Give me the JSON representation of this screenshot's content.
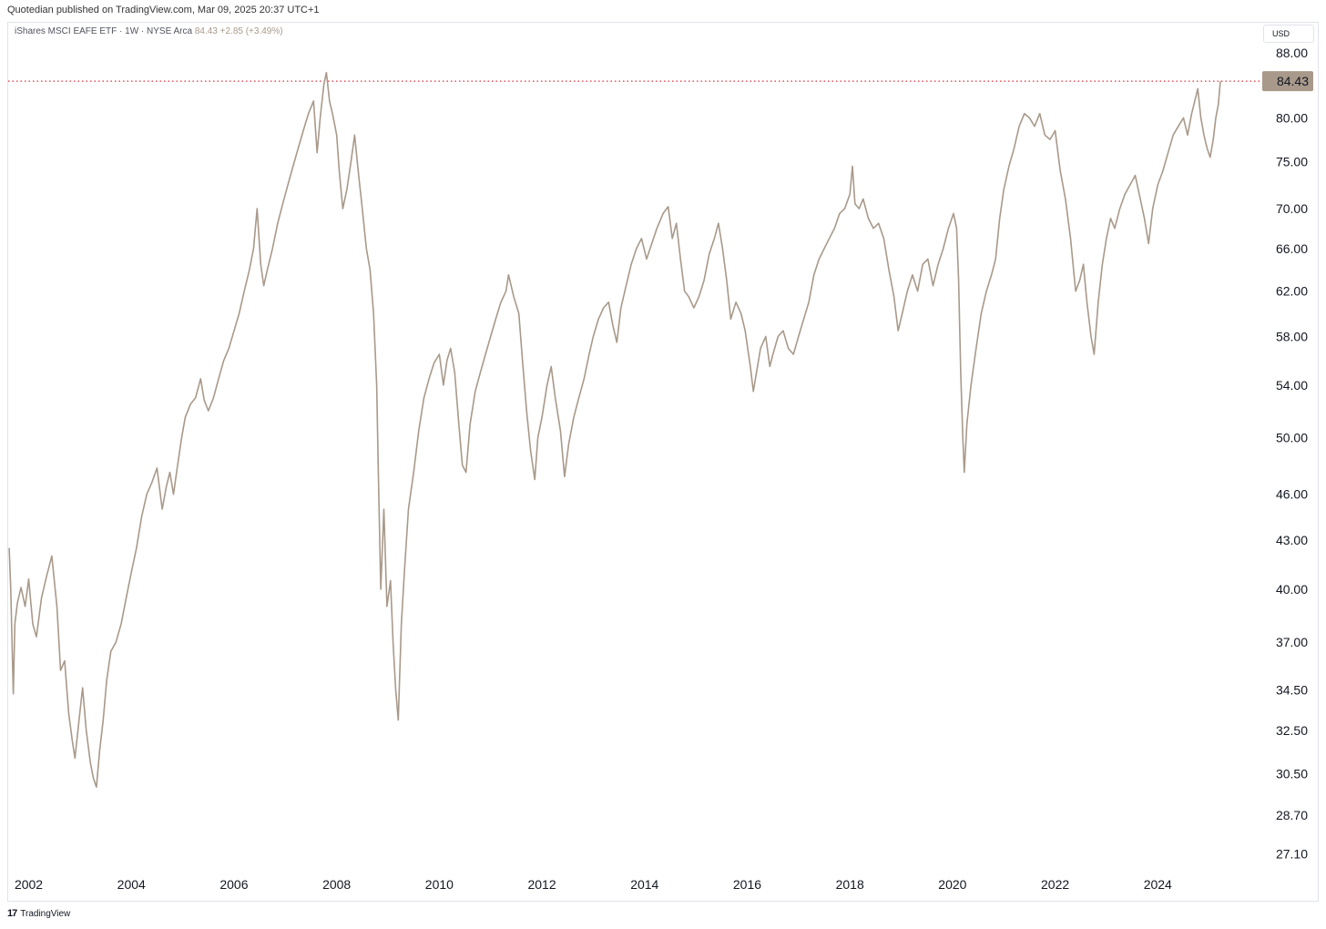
{
  "header": {
    "published": "Quotedian published on TradingView.com, Mar 09, 2025 20:37 UTC+1"
  },
  "legend": {
    "symbol": "iShares MSCI EAFE ETF · 1W · NYSE Arca",
    "last": "84.43",
    "change": "+2.85 (+3.49%)"
  },
  "currency": "USD",
  "footer": {
    "logo": "17",
    "brand": "TradingView"
  },
  "colors": {
    "series": "#a8998a",
    "price_line": "#e0303c",
    "price_badge": "#a8998a"
  },
  "chart_data": {
    "type": "line",
    "scale": "log",
    "xlim": [
      2001.6,
      2026.0
    ],
    "ylim": [
      26.3,
      92.0
    ],
    "y_ticks": [
      "88.00",
      "80.00",
      "75.00",
      "70.00",
      "66.00",
      "62.00",
      "58.00",
      "54.00",
      "50.00",
      "46.00",
      "43.00",
      "40.00",
      "37.00",
      "34.50",
      "32.50",
      "30.50",
      "28.70",
      "27.10"
    ],
    "x_ticks": [
      "2002",
      "2004",
      "2006",
      "2008",
      "2010",
      "2012",
      "2014",
      "2016",
      "2018",
      "2020",
      "2022",
      "2024"
    ],
    "current_price": 84.43,
    "current_label": "84.43",
    "series": [
      {
        "values": [
          [
            2001.62,
            42.5
          ],
          [
            2001.65,
            40.0
          ],
          [
            2001.7,
            34.3
          ],
          [
            2001.73,
            38.0
          ],
          [
            2001.78,
            39.2
          ],
          [
            2001.85,
            40.1
          ],
          [
            2001.93,
            39.0
          ],
          [
            2002.0,
            40.6
          ],
          [
            2002.08,
            38.0
          ],
          [
            2002.15,
            37.3
          ],
          [
            2002.25,
            39.5
          ],
          [
            2002.35,
            40.8
          ],
          [
            2002.45,
            42.0
          ],
          [
            2002.55,
            39.0
          ],
          [
            2002.62,
            35.5
          ],
          [
            2002.7,
            36.0
          ],
          [
            2002.78,
            33.3
          ],
          [
            2002.85,
            32.0
          ],
          [
            2002.9,
            31.2
          ],
          [
            2002.98,
            33.0
          ],
          [
            2003.05,
            34.6
          ],
          [
            2003.12,
            32.5
          ],
          [
            2003.2,
            31.0
          ],
          [
            2003.26,
            30.3
          ],
          [
            2003.32,
            29.9
          ],
          [
            2003.38,
            31.5
          ],
          [
            2003.45,
            33.0
          ],
          [
            2003.52,
            35.0
          ],
          [
            2003.6,
            36.5
          ],
          [
            2003.7,
            37.0
          ],
          [
            2003.8,
            38.0
          ],
          [
            2003.9,
            39.5
          ],
          [
            2004.0,
            41.0
          ],
          [
            2004.1,
            42.5
          ],
          [
            2004.2,
            44.5
          ],
          [
            2004.3,
            46.0
          ],
          [
            2004.4,
            46.8
          ],
          [
            2004.5,
            47.8
          ],
          [
            2004.6,
            45.0
          ],
          [
            2004.68,
            46.5
          ],
          [
            2004.75,
            47.5
          ],
          [
            2004.82,
            46.0
          ],
          [
            2004.9,
            48.0
          ],
          [
            2004.98,
            50.0
          ],
          [
            2005.05,
            51.5
          ],
          [
            2005.15,
            52.5
          ],
          [
            2005.25,
            53.0
          ],
          [
            2005.35,
            54.5
          ],
          [
            2005.42,
            52.8
          ],
          [
            2005.5,
            52.0
          ],
          [
            2005.6,
            53.0
          ],
          [
            2005.7,
            54.5
          ],
          [
            2005.8,
            56.0
          ],
          [
            2005.9,
            57.0
          ],
          [
            2006.0,
            58.5
          ],
          [
            2006.1,
            60.0
          ],
          [
            2006.2,
            62.0
          ],
          [
            2006.3,
            64.0
          ],
          [
            2006.38,
            66.0
          ],
          [
            2006.45,
            70.0
          ],
          [
            2006.52,
            64.5
          ],
          [
            2006.58,
            62.5
          ],
          [
            2006.65,
            64.0
          ],
          [
            2006.75,
            66.0
          ],
          [
            2006.85,
            68.5
          ],
          [
            2006.95,
            70.5
          ],
          [
            2007.05,
            72.5
          ],
          [
            2007.15,
            74.5
          ],
          [
            2007.25,
            76.5
          ],
          [
            2007.35,
            78.5
          ],
          [
            2007.45,
            80.5
          ],
          [
            2007.55,
            82.0
          ],
          [
            2007.62,
            76.0
          ],
          [
            2007.68,
            80.0
          ],
          [
            2007.75,
            84.0
          ],
          [
            2007.8,
            85.5
          ],
          [
            2007.86,
            82.0
          ],
          [
            2007.92,
            80.5
          ],
          [
            2008.0,
            78.0
          ],
          [
            2008.05,
            74.0
          ],
          [
            2008.12,
            70.0
          ],
          [
            2008.2,
            72.0
          ],
          [
            2008.28,
            75.0
          ],
          [
            2008.35,
            78.0
          ],
          [
            2008.42,
            74.0
          ],
          [
            2008.5,
            70.0
          ],
          [
            2008.58,
            66.0
          ],
          [
            2008.65,
            64.0
          ],
          [
            2008.72,
            60.0
          ],
          [
            2008.78,
            54.0
          ],
          [
            2008.82,
            46.0
          ],
          [
            2008.86,
            40.0
          ],
          [
            2008.92,
            45.0
          ],
          [
            2008.98,
            39.0
          ],
          [
            2009.05,
            40.5
          ],
          [
            2009.1,
            37.0
          ],
          [
            2009.15,
            34.5
          ],
          [
            2009.2,
            33.0
          ],
          [
            2009.26,
            38.0
          ],
          [
            2009.32,
            41.0
          ],
          [
            2009.4,
            45.0
          ],
          [
            2009.5,
            47.5
          ],
          [
            2009.6,
            50.5
          ],
          [
            2009.7,
            53.0
          ],
          [
            2009.8,
            54.5
          ],
          [
            2009.9,
            55.8
          ],
          [
            2010.0,
            56.5
          ],
          [
            2010.08,
            54.0
          ],
          [
            2010.15,
            56.0
          ],
          [
            2010.22,
            57.0
          ],
          [
            2010.3,
            55.0
          ],
          [
            2010.38,
            51.0
          ],
          [
            2010.45,
            48.0
          ],
          [
            2010.52,
            47.5
          ],
          [
            2010.6,
            51.0
          ],
          [
            2010.7,
            53.5
          ],
          [
            2010.8,
            55.0
          ],
          [
            2010.9,
            56.5
          ],
          [
            2011.0,
            58.0
          ],
          [
            2011.1,
            59.5
          ],
          [
            2011.2,
            61.0
          ],
          [
            2011.3,
            62.0
          ],
          [
            2011.35,
            63.5
          ],
          [
            2011.45,
            61.5
          ],
          [
            2011.55,
            60.0
          ],
          [
            2011.62,
            56.0
          ],
          [
            2011.7,
            52.0
          ],
          [
            2011.78,
            49.0
          ],
          [
            2011.86,
            47.0
          ],
          [
            2011.92,
            50.0
          ],
          [
            2012.0,
            51.5
          ],
          [
            2012.1,
            54.0
          ],
          [
            2012.18,
            55.5
          ],
          [
            2012.26,
            53.0
          ],
          [
            2012.36,
            50.5
          ],
          [
            2012.44,
            47.2
          ],
          [
            2012.52,
            49.5
          ],
          [
            2012.62,
            51.5
          ],
          [
            2012.72,
            53.0
          ],
          [
            2012.82,
            54.5
          ],
          [
            2012.92,
            56.5
          ],
          [
            2013.0,
            58.0
          ],
          [
            2013.1,
            59.5
          ],
          [
            2013.2,
            60.5
          ],
          [
            2013.3,
            61.0
          ],
          [
            2013.38,
            59.0
          ],
          [
            2013.46,
            57.5
          ],
          [
            2013.54,
            60.5
          ],
          [
            2013.64,
            62.5
          ],
          [
            2013.74,
            64.5
          ],
          [
            2013.84,
            66.0
          ],
          [
            2013.94,
            67.0
          ],
          [
            2014.04,
            65.0
          ],
          [
            2014.14,
            66.5
          ],
          [
            2014.24,
            68.0
          ],
          [
            2014.36,
            69.5
          ],
          [
            2014.46,
            70.2
          ],
          [
            2014.54,
            67.0
          ],
          [
            2014.62,
            68.5
          ],
          [
            2014.7,
            65.0
          ],
          [
            2014.78,
            62.0
          ],
          [
            2014.86,
            61.5
          ],
          [
            2014.96,
            60.5
          ],
          [
            2015.06,
            61.5
          ],
          [
            2015.16,
            63.0
          ],
          [
            2015.26,
            65.5
          ],
          [
            2015.36,
            67.0
          ],
          [
            2015.44,
            68.5
          ],
          [
            2015.52,
            66.0
          ],
          [
            2015.6,
            63.0
          ],
          [
            2015.68,
            59.5
          ],
          [
            2015.78,
            61.0
          ],
          [
            2015.88,
            60.0
          ],
          [
            2015.96,
            58.5
          ],
          [
            2016.06,
            55.5
          ],
          [
            2016.12,
            53.5
          ],
          [
            2016.18,
            55.0
          ],
          [
            2016.26,
            57.0
          ],
          [
            2016.36,
            58.0
          ],
          [
            2016.44,
            55.5
          ],
          [
            2016.5,
            56.5
          ],
          [
            2016.6,
            58.0
          ],
          [
            2016.7,
            58.5
          ],
          [
            2016.8,
            57.0
          ],
          [
            2016.9,
            56.5
          ],
          [
            2017.0,
            58.0
          ],
          [
            2017.1,
            59.5
          ],
          [
            2017.2,
            61.0
          ],
          [
            2017.3,
            63.5
          ],
          [
            2017.4,
            65.0
          ],
          [
            2017.5,
            66.0
          ],
          [
            2017.6,
            67.0
          ],
          [
            2017.7,
            68.0
          ],
          [
            2017.8,
            69.5
          ],
          [
            2017.9,
            70.0
          ],
          [
            2018.0,
            71.5
          ],
          [
            2018.05,
            74.5
          ],
          [
            2018.1,
            70.5
          ],
          [
            2018.18,
            70.0
          ],
          [
            2018.26,
            71.0
          ],
          [
            2018.36,
            69.0
          ],
          [
            2018.46,
            68.0
          ],
          [
            2018.56,
            68.5
          ],
          [
            2018.66,
            67.0
          ],
          [
            2018.76,
            64.0
          ],
          [
            2018.86,
            61.5
          ],
          [
            2018.94,
            58.5
          ],
          [
            2019.02,
            60.0
          ],
          [
            2019.12,
            62.0
          ],
          [
            2019.22,
            63.5
          ],
          [
            2019.32,
            62.0
          ],
          [
            2019.42,
            64.5
          ],
          [
            2019.52,
            65.0
          ],
          [
            2019.62,
            62.5
          ],
          [
            2019.72,
            64.5
          ],
          [
            2019.82,
            66.0
          ],
          [
            2019.92,
            68.0
          ],
          [
            2020.02,
            69.5
          ],
          [
            2020.08,
            68.0
          ],
          [
            2020.12,
            63.0
          ],
          [
            2020.16,
            55.0
          ],
          [
            2020.2,
            50.0
          ],
          [
            2020.23,
            47.5
          ],
          [
            2020.28,
            51.0
          ],
          [
            2020.36,
            54.0
          ],
          [
            2020.46,
            57.0
          ],
          [
            2020.56,
            60.0
          ],
          [
            2020.66,
            62.0
          ],
          [
            2020.76,
            63.5
          ],
          [
            2020.84,
            65.0
          ],
          [
            2020.92,
            69.0
          ],
          [
            2021.0,
            72.0
          ],
          [
            2021.1,
            74.5
          ],
          [
            2021.2,
            76.5
          ],
          [
            2021.3,
            79.0
          ],
          [
            2021.4,
            80.5
          ],
          [
            2021.5,
            80.0
          ],
          [
            2021.6,
            79.0
          ],
          [
            2021.7,
            80.5
          ],
          [
            2021.8,
            78.0
          ],
          [
            2021.9,
            77.5
          ],
          [
            2022.0,
            78.5
          ],
          [
            2022.1,
            74.0
          ],
          [
            2022.2,
            71.0
          ],
          [
            2022.3,
            67.0
          ],
          [
            2022.4,
            62.0
          ],
          [
            2022.48,
            63.0
          ],
          [
            2022.55,
            64.5
          ],
          [
            2022.62,
            61.0
          ],
          [
            2022.7,
            58.0
          ],
          [
            2022.76,
            56.5
          ],
          [
            2022.84,
            61.0
          ],
          [
            2022.92,
            64.5
          ],
          [
            2023.0,
            67.0
          ],
          [
            2023.08,
            69.0
          ],
          [
            2023.16,
            68.0
          ],
          [
            2023.26,
            70.0
          ],
          [
            2023.36,
            71.5
          ],
          [
            2023.46,
            72.5
          ],
          [
            2023.56,
            73.5
          ],
          [
            2023.66,
            71.0
          ],
          [
            2023.74,
            69.0
          ],
          [
            2023.82,
            66.5
          ],
          [
            2023.9,
            70.0
          ],
          [
            2024.0,
            72.5
          ],
          [
            2024.1,
            74.0
          ],
          [
            2024.2,
            76.0
          ],
          [
            2024.3,
            78.0
          ],
          [
            2024.4,
            79.0
          ],
          [
            2024.5,
            80.0
          ],
          [
            2024.58,
            78.0
          ],
          [
            2024.66,
            80.5
          ],
          [
            2024.72,
            82.0
          ],
          [
            2024.78,
            83.5
          ],
          [
            2024.84,
            80.0
          ],
          [
            2024.9,
            78.0
          ],
          [
            2024.96,
            76.5
          ],
          [
            2025.02,
            75.5
          ],
          [
            2025.08,
            77.5
          ],
          [
            2025.13,
            80.0
          ],
          [
            2025.18,
            81.6
          ],
          [
            2025.22,
            84.43
          ]
        ]
      }
    ]
  }
}
